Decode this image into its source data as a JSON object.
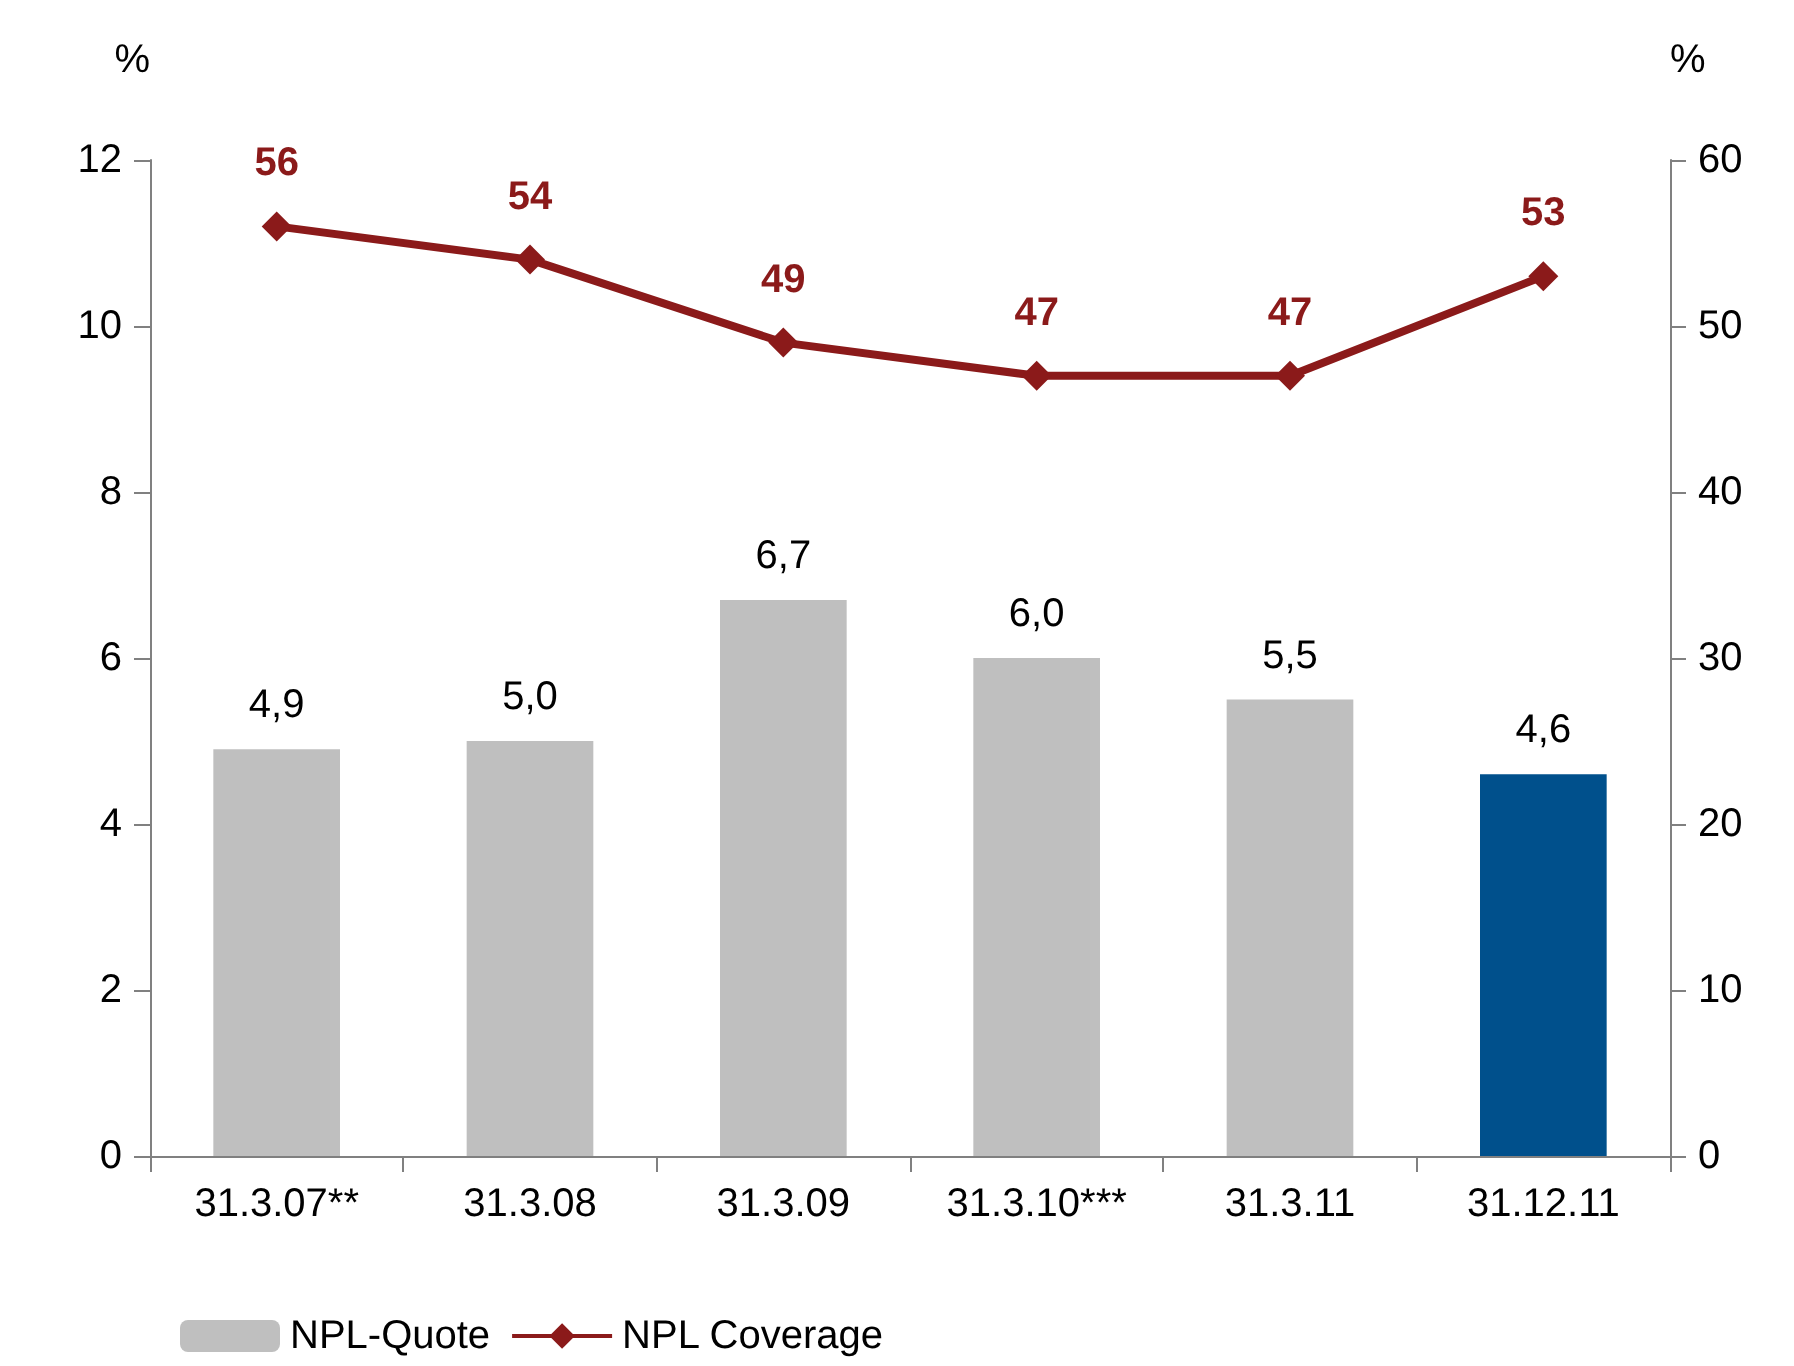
{
  "chart_data": {
    "type": "bar",
    "categories": [
      "31.3.07**",
      "31.3.08",
      "31.3.09",
      "31.3.10***",
      "31.3.11",
      "31.12.11"
    ],
    "ylabel": "%",
    "y2label": "%",
    "ylim": [
      0,
      12
    ],
    "yticks": [
      0,
      2,
      4,
      6,
      8,
      10,
      12
    ],
    "y2lim": [
      0,
      60
    ],
    "y2ticks": [
      0,
      10,
      20,
      30,
      40,
      50,
      60
    ],
    "series": [
      {
        "name": "NPL-Quote",
        "color": "#bfbfbf",
        "colors": [
          "#bfbfbf",
          "#bfbfbf",
          "#bfbfbf",
          "#bfbfbf",
          "#bfbfbf",
          "#00508c"
        ],
        "values": [
          4.9,
          5.0,
          6.7,
          6.0,
          5.5,
          4.6
        ],
        "value_labels": [
          "4,9",
          "5,0",
          "6,7",
          "6,0",
          "5,5",
          "4,6"
        ]
      },
      {
        "type": "line",
        "name": "NPL Coverage",
        "axis": "y2",
        "color": "#8b1a1a",
        "marker": "diamond",
        "values": [
          56,
          54,
          49,
          47,
          47,
          53
        ],
        "value_labels": [
          "56",
          "54",
          "49",
          "47",
          "47",
          "53"
        ]
      }
    ],
    "grid": false,
    "legend": "bottom left"
  }
}
